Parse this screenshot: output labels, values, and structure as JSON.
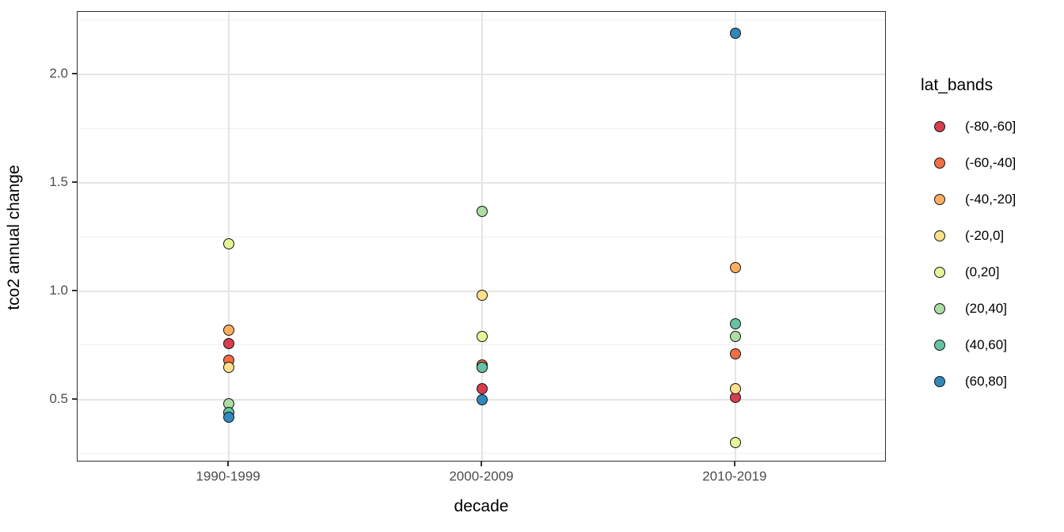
{
  "chart_data": {
    "type": "scatter",
    "title": "",
    "xlabel": "decade",
    "ylabel": "tco2 annual change",
    "categories": [
      "1990-1999",
      "2000-2009",
      "2010-2019"
    ],
    "category_positions": [
      0.187,
      0.5,
      0.813
    ],
    "ylim": [
      0.21,
      2.29
    ],
    "y_ticks": [
      0.5,
      1.0,
      1.5,
      2.0
    ],
    "y_tick_labels": [
      "0.5",
      "1.0",
      "1.5",
      "2.0"
    ],
    "y_minor_ticks": [
      0.25,
      0.75,
      1.25,
      1.75,
      2.25
    ],
    "grid": true,
    "legend_position": "right",
    "legend_title": "lat_bands",
    "series": [
      {
        "name": "(-80,-60]",
        "color": "#D53E4F",
        "values": [
          0.76,
          0.55,
          0.51
        ]
      },
      {
        "name": "(-60,-40]",
        "color": "#F46D43",
        "values": [
          0.68,
          0.66,
          0.71
        ]
      },
      {
        "name": "(-40,-20]",
        "color": "#FDAE61",
        "values": [
          0.82,
          0.65,
          1.11
        ]
      },
      {
        "name": "(-20,0]",
        "color": "#FEE08B",
        "values": [
          0.65,
          0.98,
          0.55
        ]
      },
      {
        "name": "(0,20]",
        "color": "#E6F598",
        "values": [
          1.22,
          0.79,
          0.3
        ]
      },
      {
        "name": "(20,40]",
        "color": "#ABDDA4",
        "values": [
          0.48,
          1.37,
          0.79
        ]
      },
      {
        "name": "(40,60]",
        "color": "#66C2A5",
        "values": [
          0.44,
          0.65,
          0.85
        ]
      },
      {
        "name": "(60,80]",
        "color": "#3288BD",
        "values": [
          0.42,
          0.5,
          2.19
        ]
      }
    ],
    "note": "Values estimated from point positions; the (-60,-40] and (-40,-20] points for 2000-2009 are occluded behind the (40,60] point."
  },
  "styles": {
    "panel_border": "#2f2f2f",
    "grid_major": "#e5e5e5",
    "grid_minor": "#f0f0f0",
    "tick_label_color": "#4d4d4d",
    "axis_title_color": "#000000",
    "point_outline": "#141414",
    "background": "#ffffff"
  }
}
